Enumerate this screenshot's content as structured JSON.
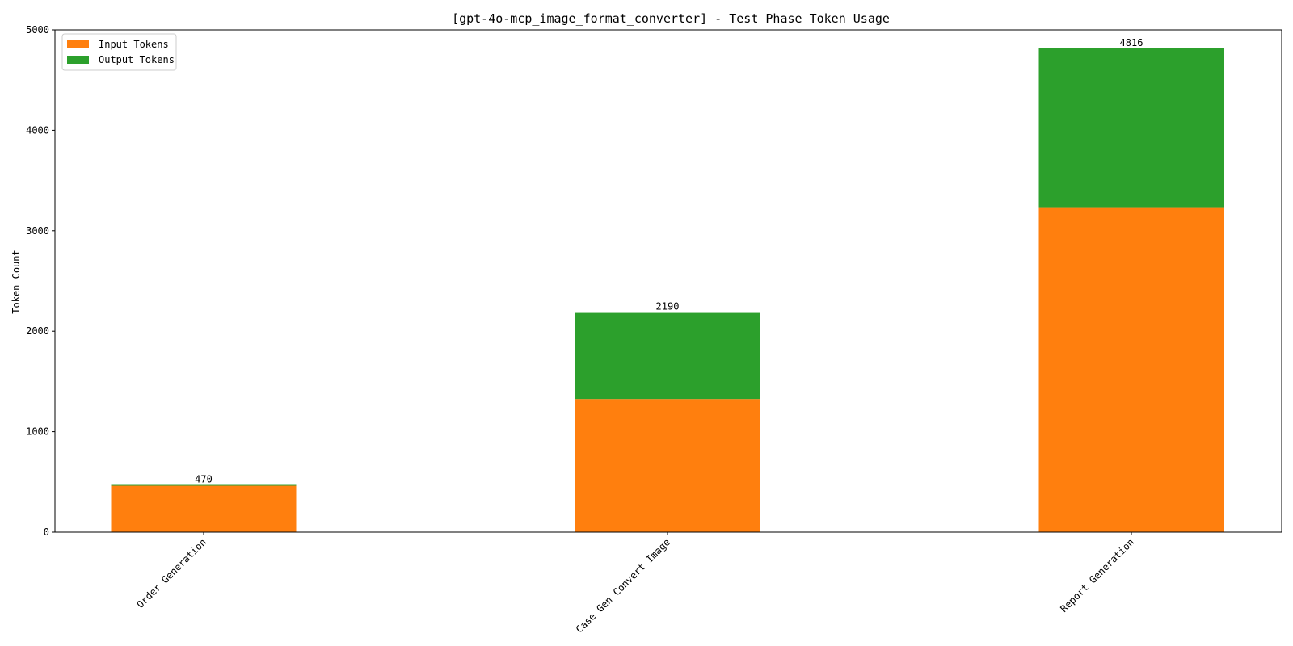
{
  "chart_data": {
    "type": "bar",
    "stacked": true,
    "title": "[gpt-4o-mcp_image_format_converter] - Test Phase Token Usage",
    "xlabel": "",
    "ylabel": "Token Count",
    "categories": [
      "Order Generation",
      "Case Gen Convert Image",
      "Report Generation"
    ],
    "series": [
      {
        "name": "Input Tokens",
        "color": "#ff7f0e",
        "values": [
          462,
          1325,
          3235
        ]
      },
      {
        "name": "Output Tokens",
        "color": "#2ca02c",
        "values": [
          8,
          865,
          1581
        ]
      }
    ],
    "totals": [
      470,
      2190,
      4816
    ],
    "ylim": [
      0,
      5000
    ],
    "yticks": [
      0,
      1000,
      2000,
      3000,
      4000,
      5000
    ],
    "grid": false,
    "legend_position": "top-left"
  }
}
